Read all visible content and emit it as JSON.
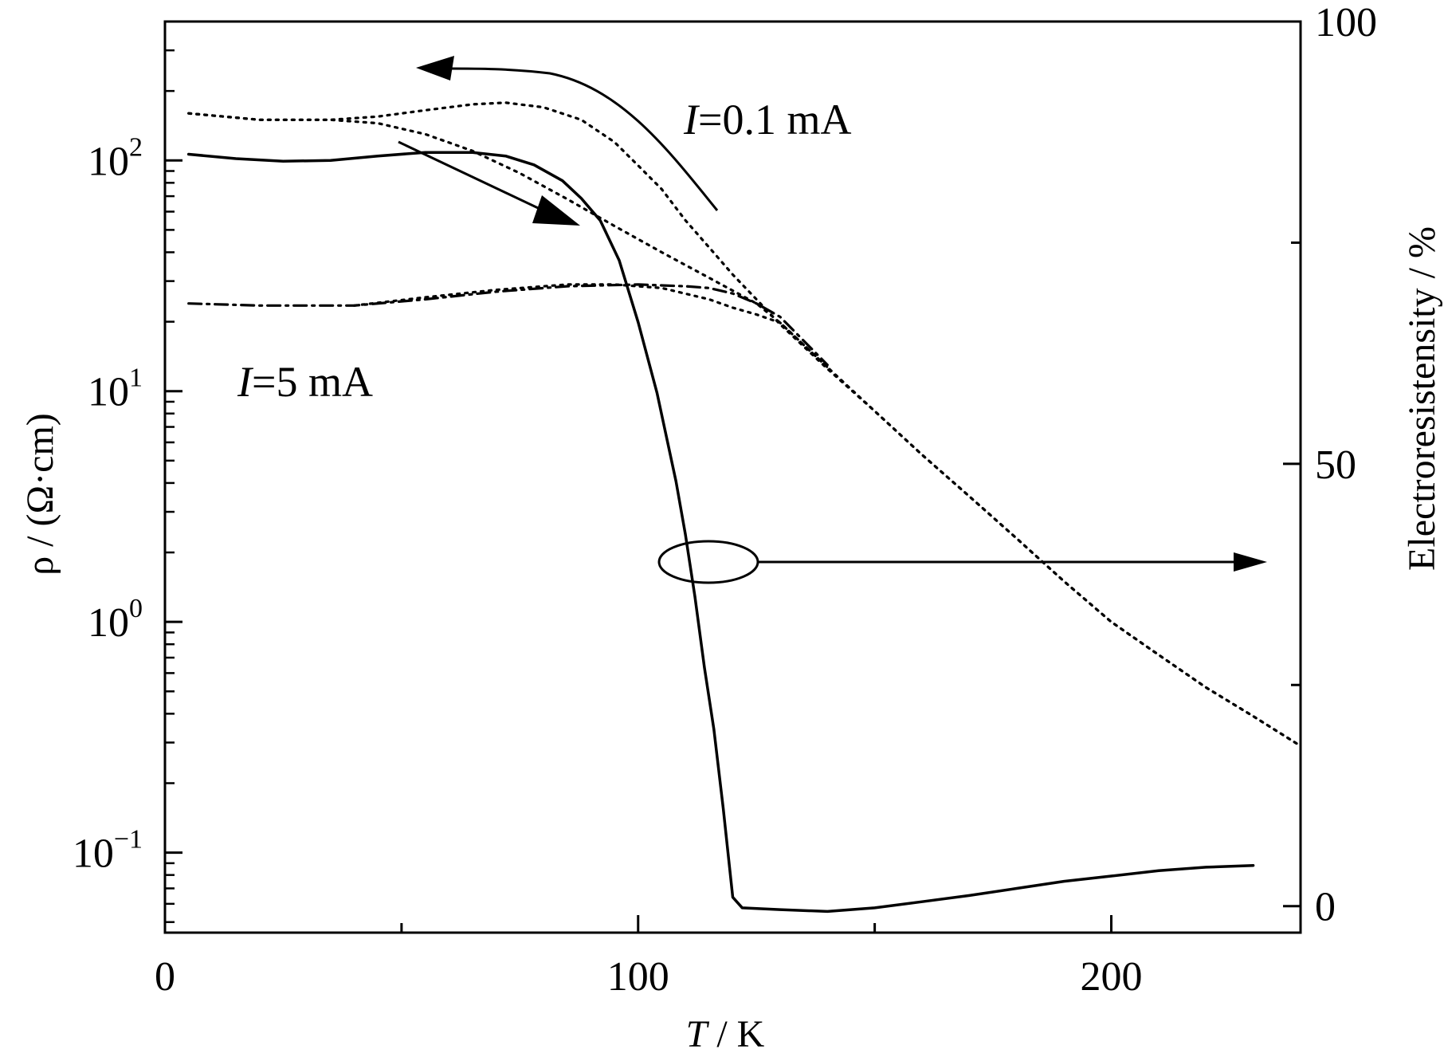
{
  "chart_data": {
    "type": "line",
    "x_axis": {
      "label_italic": "T",
      "label_rest": " / K",
      "range": [
        0,
        240
      ],
      "ticks": [
        0,
        100,
        200
      ],
      "minor_ticks": [
        50,
        150
      ]
    },
    "y_axis_left": {
      "label": "ρ / (Ω·cm)",
      "scale": "log",
      "range": [
        0.045,
        400
      ],
      "ticks": [
        {
          "value": 0.1,
          "base": "10",
          "exp": "−1"
        },
        {
          "value": 1,
          "base": "10",
          "exp": "0"
        },
        {
          "value": 10,
          "base": "10",
          "exp": "1"
        },
        {
          "value": 100,
          "base": "10",
          "exp": "2"
        }
      ]
    },
    "y_axis_right": {
      "label": "Electroresistensity / %",
      "scale": "linear",
      "range": [
        -3,
        100
      ],
      "ticks": [
        0,
        50,
        100
      ],
      "minor_ticks": [
        25,
        75
      ]
    },
    "annotations": [
      {
        "italic": "I",
        "text": "=0.1 mA"
      },
      {
        "italic": "I",
        "text": "=5 mA"
      }
    ],
    "series": [
      {
        "axis": "left",
        "style": "dotted",
        "x": [
          5,
          20,
          35,
          45,
          55,
          65,
          72,
          80,
          88,
          95,
          100,
          105,
          110,
          115,
          120,
          125,
          130,
          140,
          150,
          160,
          170,
          180,
          190,
          200,
          210,
          220,
          230,
          240
        ],
        "y": [
          160,
          150,
          150,
          155,
          165,
          175,
          178,
          170,
          150,
          120,
          95,
          75,
          55,
          42,
          32,
          25,
          19.5,
          12.5,
          8.2,
          5.3,
          3.5,
          2.3,
          1.5,
          1.0,
          0.72,
          0.52,
          0.39,
          0.29
        ]
      },
      {
        "axis": "left",
        "style": "dotted",
        "x": [
          5,
          20,
          35,
          45,
          55,
          65,
          75,
          85,
          95,
          105,
          115,
          125,
          130,
          140,
          150,
          160,
          170,
          180,
          190,
          200,
          210,
          220,
          230,
          240
        ],
        "y": [
          160,
          150,
          150,
          145,
          130,
          110,
          88,
          68,
          52,
          40,
          31,
          24,
          19.8,
          12.7,
          8.2,
          5.3,
          3.5,
          2.3,
          1.5,
          1.0,
          0.72,
          0.52,
          0.39,
          0.29
        ]
      },
      {
        "axis": "left",
        "style": "dashdot",
        "x": [
          5,
          20,
          40,
          55,
          70,
          85,
          100,
          110,
          115,
          120,
          125,
          130,
          140
        ],
        "y": [
          24,
          23.5,
          23.5,
          25,
          27,
          28.5,
          29,
          28.5,
          28,
          26.5,
          24,
          21,
          13
        ]
      },
      {
        "axis": "left",
        "style": "dotted",
        "x": [
          40,
          55,
          70,
          85,
          95,
          105,
          115,
          120,
          125,
          130,
          140
        ],
        "y": [
          23.5,
          25.5,
          27.5,
          29,
          29,
          28,
          25,
          23,
          21.5,
          19.8,
          12.7
        ]
      },
      {
        "axis": "right",
        "style": "solid",
        "x": [
          5,
          15,
          25,
          35,
          45,
          55,
          65,
          72,
          78,
          84,
          88,
          92,
          96,
          100,
          104,
          108,
          110,
          112,
          114,
          116,
          118,
          120,
          122,
          130,
          140,
          150,
          160,
          170,
          180,
          190,
          200,
          210,
          220,
          230
        ],
        "y": [
          85,
          84.5,
          84.2,
          84.3,
          84.8,
          85.2,
          85.2,
          84.8,
          83.8,
          82,
          80,
          77.5,
          73,
          66,
          58,
          48,
          42,
          35,
          27,
          20,
          11,
          1,
          -0.2,
          -0.4,
          -0.6,
          -0.2,
          0.5,
          1.2,
          2.0,
          2.8,
          3.4,
          4.0,
          4.4,
          4.6
        ]
      }
    ]
  }
}
